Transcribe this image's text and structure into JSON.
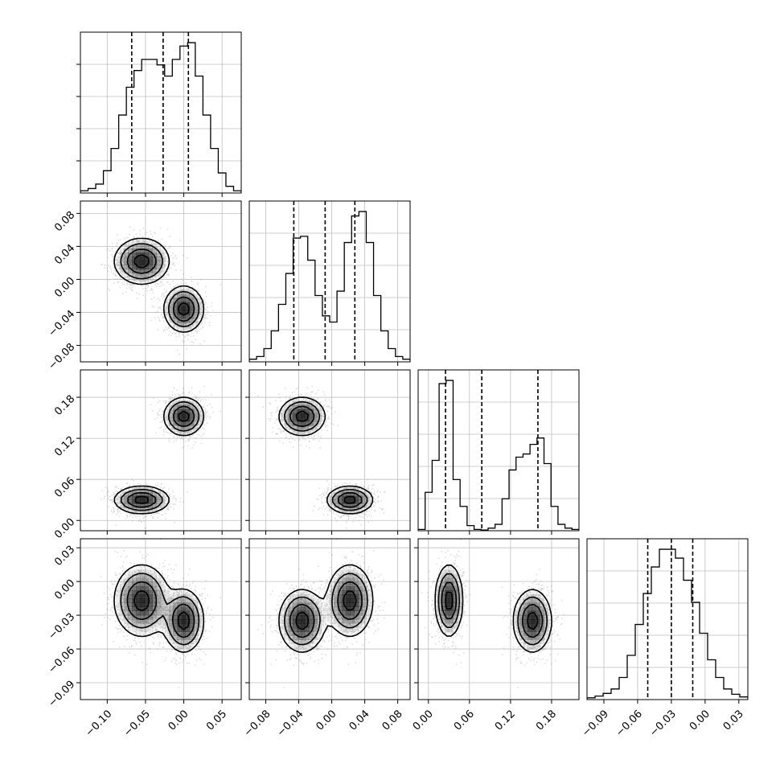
{
  "chart_data": {
    "type": "corner",
    "n_params": 4,
    "title": "",
    "colors": {
      "line": "#000000",
      "grid": "#bfbfbf",
      "points": "#8c8c8c",
      "shade": "#000000"
    },
    "params": [
      {
        "range": [
          -0.135,
          0.075
        ],
        "ticks": [
          -0.1,
          -0.05,
          0.0,
          0.05
        ],
        "tick_labels": [
          "−0.10",
          "−0.05",
          "0.00",
          "0.05"
        ],
        "quantiles": [
          -0.068,
          -0.027,
          0.006
        ],
        "hist_counts": [
          2,
          4,
          8,
          20,
          40,
          70,
          95,
          110,
          120,
          120,
          115,
          105,
          120,
          132,
          135,
          105,
          70,
          40,
          18,
          6,
          2
        ]
      },
      {
        "range": [
          -0.1,
          0.095
        ],
        "ticks": [
          -0.08,
          -0.04,
          0.0,
          0.04,
          0.08
        ],
        "tick_labels": [
          "−0.08",
          "−0.04",
          "0.00",
          "0.04",
          "0.08"
        ],
        "quantiles": [
          -0.046,
          -0.008,
          0.028
        ],
        "hist_counts": [
          3,
          6,
          15,
          35,
          65,
          100,
          140,
          142,
          115,
          75,
          52,
          45,
          80,
          135,
          165,
          170,
          135,
          75,
          35,
          15,
          6,
          3
        ]
      },
      {
        "range": [
          -0.015,
          0.22
        ],
        "ticks": [
          0.0,
          0.06,
          0.12,
          0.18
        ],
        "tick_labels": [
          "0.00",
          "0.06",
          "0.12",
          "0.18"
        ],
        "quantiles": [
          0.025,
          0.078,
          0.16
        ],
        "hist_counts": [
          2,
          60,
          110,
          230,
          235,
          80,
          38,
          8,
          2,
          1,
          4,
          10,
          50,
          95,
          115,
          120,
          135,
          145,
          105,
          38,
          10,
          4,
          2
        ]
      },
      {
        "range": [
          -0.105,
          0.038
        ],
        "ticks": [
          -0.09,
          -0.06,
          -0.03,
          0.0,
          0.03
        ],
        "tick_labels": [
          "−0.09",
          "−0.06",
          "−0.03",
          "0.00",
          "0.03"
        ],
        "quantiles": [
          -0.051,
          -0.03,
          -0.011
        ],
        "hist_counts": [
          2,
          4,
          7,
          12,
          25,
          50,
          85,
          120,
          150,
          170,
          170,
          160,
          135,
          110,
          75,
          45,
          25,
          12,
          6,
          3
        ]
      }
    ],
    "modes": [
      {
        "means": [
          -0.055,
          0.022,
          0.03,
          -0.017
        ],
        "sds": [
          0.018,
          0.014,
          0.01,
          0.016
        ]
      },
      {
        "means": [
          0.0,
          -0.036,
          0.152,
          -0.035
        ],
        "sds": [
          0.013,
          0.014,
          0.014,
          0.014
        ]
      }
    ]
  }
}
